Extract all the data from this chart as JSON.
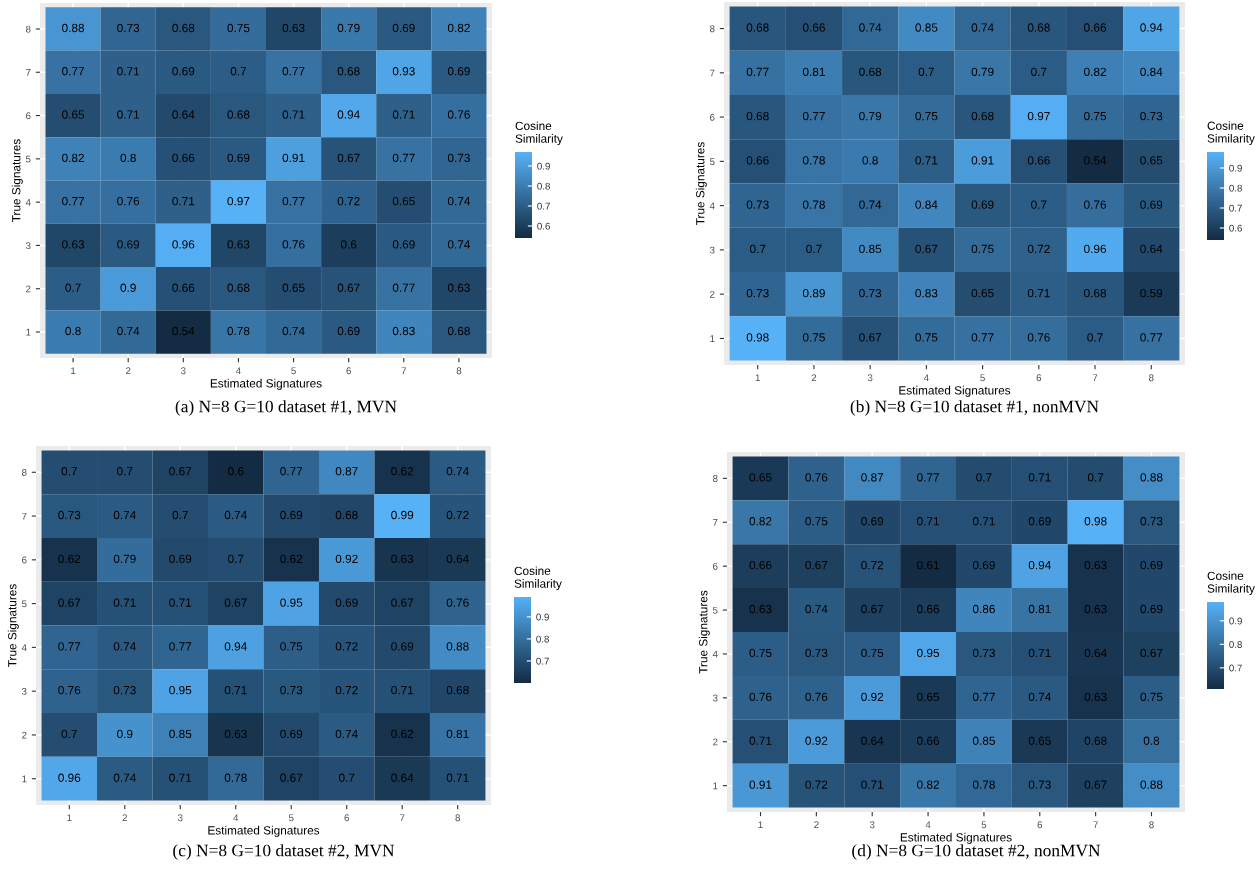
{
  "chart_data": [
    {
      "type": "heatmap",
      "xlabel": "Estimated Signatures",
      "ylabel": "True Signatures",
      "clabel": "Cosine\nSimilarity",
      "annotations": [
        "(a) N=8 G=10 dataset #1, MVN"
      ],
      "grid": true,
      "data_labels": true,
      "categories": [
        "1",
        "2",
        "3",
        "4",
        "5",
        "6",
        "7",
        "8"
      ],
      "y_categories": [
        "8",
        "7",
        "6",
        "5",
        "4",
        "3",
        "2",
        "1"
      ],
      "clim": [
        0.54,
        0.97
      ],
      "cticks": [
        0.6,
        0.7,
        0.8,
        0.9
      ],
      "cells": [
        [
          0.88,
          0.73,
          0.68,
          0.75,
          0.63,
          0.79,
          0.69,
          0.82
        ],
        [
          0.77,
          0.71,
          0.69,
          0.7,
          0.77,
          0.68,
          0.93,
          0.69
        ],
        [
          0.65,
          0.71,
          0.64,
          0.68,
          0.71,
          0.94,
          0.71,
          0.76
        ],
        [
          0.82,
          0.8,
          0.66,
          0.69,
          0.91,
          0.67,
          0.77,
          0.73
        ],
        [
          0.77,
          0.76,
          0.71,
          0.97,
          0.77,
          0.72,
          0.65,
          0.74
        ],
        [
          0.63,
          0.69,
          0.96,
          0.63,
          0.76,
          0.6,
          0.69,
          0.74
        ],
        [
          0.7,
          0.9,
          0.66,
          0.68,
          0.65,
          0.67,
          0.77,
          0.63
        ],
        [
          0.8,
          0.74,
          0.54,
          0.78,
          0.74,
          0.69,
          0.83,
          0.68
        ]
      ]
    },
    {
      "type": "heatmap",
      "xlabel": "Estimated Signatures",
      "ylabel": "True Signatures",
      "clabel": "Cosine\nSimilarity",
      "annotations": [
        "(b) N=8 G=10 dataset #1, nonMVN"
      ],
      "grid": true,
      "data_labels": true,
      "categories": [
        "1",
        "2",
        "3",
        "4",
        "5",
        "6",
        "7",
        "8"
      ],
      "y_categories": [
        "8",
        "7",
        "6",
        "5",
        "4",
        "3",
        "2",
        "1"
      ],
      "clim": [
        0.54,
        0.98
      ],
      "cticks": [
        0.6,
        0.7,
        0.8,
        0.9
      ],
      "cells": [
        [
          0.68,
          0.66,
          0.74,
          0.85,
          0.74,
          0.68,
          0.66,
          0.94
        ],
        [
          0.77,
          0.81,
          0.68,
          0.7,
          0.79,
          0.7,
          0.82,
          0.84
        ],
        [
          0.68,
          0.77,
          0.79,
          0.75,
          0.68,
          0.97,
          0.75,
          0.73
        ],
        [
          0.66,
          0.78,
          0.8,
          0.71,
          0.91,
          0.66,
          0.54,
          0.65
        ],
        [
          0.73,
          0.78,
          0.74,
          0.84,
          0.69,
          0.7,
          0.76,
          0.69
        ],
        [
          0.7,
          0.7,
          0.85,
          0.67,
          0.75,
          0.72,
          0.96,
          0.64
        ],
        [
          0.73,
          0.89,
          0.73,
          0.83,
          0.65,
          0.71,
          0.68,
          0.59
        ],
        [
          0.98,
          0.75,
          0.67,
          0.75,
          0.77,
          0.76,
          0.7,
          0.77
        ]
      ]
    },
    {
      "type": "heatmap",
      "xlabel": "Estimated Signatures",
      "ylabel": "True Signatures",
      "clabel": "Cosine\nSimilarity",
      "annotations": [
        "(c) N=8 G=10 dataset #2, MVN"
      ],
      "grid": true,
      "data_labels": true,
      "categories": [
        "1",
        "2",
        "3",
        "4",
        "5",
        "6",
        "7",
        "8"
      ],
      "y_categories": [
        "8",
        "7",
        "6",
        "5",
        "4",
        "3",
        "2",
        "1"
      ],
      "clim": [
        0.6,
        0.99
      ],
      "cticks": [
        0.7,
        0.8,
        0.9
      ],
      "cells": [
        [
          0.7,
          0.7,
          0.67,
          0.6,
          0.77,
          0.87,
          0.62,
          0.74
        ],
        [
          0.73,
          0.74,
          0.7,
          0.74,
          0.69,
          0.68,
          0.99,
          0.72
        ],
        [
          0.62,
          0.79,
          0.69,
          0.7,
          0.62,
          0.92,
          0.63,
          0.64
        ],
        [
          0.67,
          0.71,
          0.71,
          0.67,
          0.95,
          0.69,
          0.67,
          0.76
        ],
        [
          0.77,
          0.74,
          0.77,
          0.94,
          0.75,
          0.72,
          0.69,
          0.88
        ],
        [
          0.76,
          0.73,
          0.95,
          0.71,
          0.73,
          0.72,
          0.71,
          0.68
        ],
        [
          0.7,
          0.9,
          0.85,
          0.63,
          0.69,
          0.74,
          0.62,
          0.81
        ],
        [
          0.96,
          0.74,
          0.71,
          0.78,
          0.67,
          0.7,
          0.64,
          0.71
        ]
      ]
    },
    {
      "type": "heatmap",
      "xlabel": "Estimated Signatures",
      "ylabel": "True Signatures",
      "clabel": "Cosine\nSimilarity",
      "annotations": [
        "(d) N=8 G=10 dataset #2, nonMVN"
      ],
      "grid": true,
      "data_labels": true,
      "categories": [
        "1",
        "2",
        "3",
        "4",
        "5",
        "6",
        "7",
        "8"
      ],
      "y_categories": [
        "8",
        "7",
        "6",
        "5",
        "4",
        "3",
        "2",
        "1"
      ],
      "clim": [
        0.61,
        0.98
      ],
      "cticks": [
        0.7,
        0.8,
        0.9
      ],
      "cells": [
        [
          0.65,
          0.76,
          0.87,
          0.77,
          0.7,
          0.71,
          0.7,
          0.88
        ],
        [
          0.82,
          0.75,
          0.69,
          0.71,
          0.71,
          0.69,
          0.98,
          0.73
        ],
        [
          0.66,
          0.67,
          0.72,
          0.61,
          0.69,
          0.94,
          0.63,
          0.69
        ],
        [
          0.63,
          0.74,
          0.67,
          0.66,
          0.86,
          0.81,
          0.63,
          0.69
        ],
        [
          0.75,
          0.73,
          0.75,
          0.95,
          0.73,
          0.71,
          0.64,
          0.67
        ],
        [
          0.76,
          0.76,
          0.92,
          0.65,
          0.77,
          0.74,
          0.63,
          0.75
        ],
        [
          0.71,
          0.92,
          0.64,
          0.66,
          0.85,
          0.65,
          0.68,
          0.8
        ],
        [
          0.91,
          0.72,
          0.71,
          0.82,
          0.78,
          0.73,
          0.67,
          0.88
        ]
      ]
    }
  ]
}
